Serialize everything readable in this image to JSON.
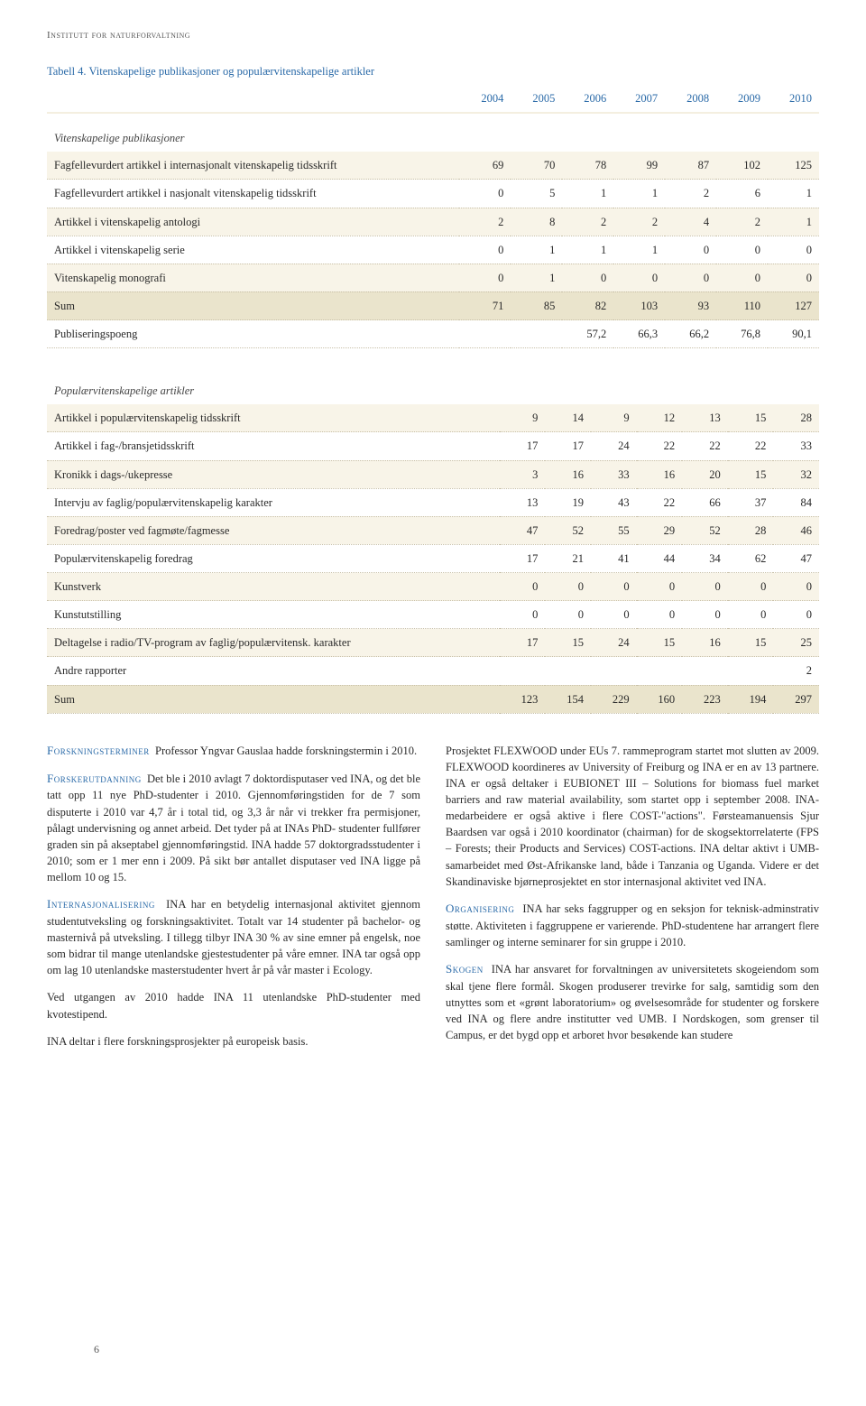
{
  "header": "Institutt for naturforvaltning",
  "caption": {
    "label": "Tabell 4.",
    "text": "Vitenskapelige publikasjoner og populærvitenskapelige artikler"
  },
  "table1": {
    "years": [
      "2004",
      "2005",
      "2006",
      "2007",
      "2008",
      "2009",
      "2010"
    ],
    "section_head": "Vitenskapelige publikasjoner",
    "rows": [
      {
        "label": "Fagfellevurdert artikkel i internasjonalt vitenskapelig tidsskrift",
        "v": [
          "69",
          "70",
          "78",
          "99",
          "87",
          "102",
          "125"
        ]
      },
      {
        "label": "Fagfellevurdert artikkel i nasjonalt vitenskapelig tidsskrift",
        "v": [
          "0",
          "5",
          "1",
          "1",
          "2",
          "6",
          "1"
        ]
      },
      {
        "label": "Artikkel i vitenskapelig antologi",
        "v": [
          "2",
          "8",
          "2",
          "2",
          "4",
          "2",
          "1"
        ]
      },
      {
        "label": "Artikkel i vitenskapelig serie",
        "v": [
          "0",
          "1",
          "1",
          "1",
          "0",
          "0",
          "0"
        ]
      },
      {
        "label": "Vitenskapelig monografi",
        "v": [
          "0",
          "1",
          "0",
          "0",
          "0",
          "0",
          "0"
        ]
      }
    ],
    "sum": {
      "label": "Sum",
      "v": [
        "71",
        "85",
        "82",
        "103",
        "93",
        "110",
        "127"
      ]
    },
    "pub": {
      "label": "Publiseringspoeng",
      "v": [
        "",
        "",
        "57,2",
        "66,3",
        "66,2",
        "76,8",
        "90,1"
      ]
    }
  },
  "table2": {
    "section_head": "Populærvitenskapelige artikler",
    "rows": [
      {
        "label": "Artikkel i populærvitenskapelig tidsskrift",
        "v": [
          "9",
          "14",
          "9",
          "12",
          "13",
          "15",
          "28"
        ]
      },
      {
        "label": "Artikkel i fag-/bransjetidsskrift",
        "v": [
          "17",
          "17",
          "24",
          "22",
          "22",
          "22",
          "33"
        ]
      },
      {
        "label": "Kronikk i dags-/ukepresse",
        "v": [
          "3",
          "16",
          "33",
          "16",
          "20",
          "15",
          "32"
        ]
      },
      {
        "label": "Intervju av faglig/populærvitenskapelig karakter",
        "v": [
          "13",
          "19",
          "43",
          "22",
          "66",
          "37",
          "84"
        ]
      },
      {
        "label": "Foredrag/poster ved fagmøte/fagmesse",
        "v": [
          "47",
          "52",
          "55",
          "29",
          "52",
          "28",
          "46"
        ]
      },
      {
        "label": "Populærvitenskapelig foredrag",
        "v": [
          "17",
          "21",
          "41",
          "44",
          "34",
          "62",
          "47"
        ]
      },
      {
        "label": "Kunstverk",
        "v": [
          "0",
          "0",
          "0",
          "0",
          "0",
          "0",
          "0"
        ]
      },
      {
        "label": "Kunstutstilling",
        "v": [
          "0",
          "0",
          "0",
          "0",
          "0",
          "0",
          "0"
        ]
      },
      {
        "label": "Deltagelse i radio/TV-program av faglig/populærvitensk. karakter",
        "v": [
          "17",
          "15",
          "24",
          "15",
          "16",
          "15",
          "25"
        ]
      },
      {
        "label": "Andre rapporter",
        "v": [
          "",
          "",
          "",
          "",
          "",
          "",
          "2"
        ]
      }
    ],
    "sum": {
      "label": "Sum",
      "v": [
        "123",
        "154",
        "229",
        "160",
        "223",
        "194",
        "297"
      ]
    }
  },
  "body": {
    "p1_head": "Forskningsterminer",
    "p1": "Professor Yngvar Gauslaa hadde forskningstermin i 2010.",
    "p2_head": "Forskerutdanning",
    "p2": "Det ble i 2010 avlagt 7 doktordisputaser ved INA, og det ble tatt opp 11 nye PhD-studenter i 2010. Gjennomføringstiden for de 7 som disputerte i 2010 var 4,7 år i total tid, og 3,3 år når vi trekker fra permisjoner, pålagt undervisning og annet arbeid. Det tyder på at INAs PhD- studenter fullfører graden sin på akseptabel gjennomføringstid. INA hadde 57 doktorgradsstudenter i 2010; som er 1 mer enn i 2009. På sikt bør antallet disputaser ved INA ligge på mellom 10 og 15.",
    "p3_head": "Internasjonalisering",
    "p3": "INA har en betydelig internasjonal aktivitet gjennom studentutveksling og forskningsaktivitet. Totalt var 14 studenter på bachelor- og masternivå på utveksling. I tillegg tilbyr INA 30 % av sine emner på engelsk, noe som bidrar til mange utenlandske gjestestudenter på våre emner. INA tar også opp om lag 10 utenlandske masterstudenter hvert år på vår master i Ecology.",
    "p4": "Ved utgangen av 2010 hadde INA 11 utenlandske PhD-studenter med kvotestipend.",
    "p5": "INA deltar i flere forskningsprosjekter på europeisk basis.",
    "p6": "Prosjektet FLEXWOOD under EUs 7. rammeprogram startet mot slutten av 2009. FLEXWOOD koordineres av University of Freiburg og INA er en av 13 partnere. INA er også deltaker i EUBIONET III – Solutions for biomass fuel market barriers and raw material availability, som startet opp i september 2008. INA-medarbeidere er også aktive i flere COST-\"actions\". Førsteamanuensis Sjur Baardsen var også i 2010 koordinator (chairman) for de skogsektorrelaterte (FPS – Forests; their Products and Services) COST-actions. INA deltar aktivt i UMB-samarbeidet med Øst-Afrikanske land, både i Tanzania og Uganda. Videre er det Skandinaviske bjørneprosjektet en stor internasjonal aktivitet ved INA.",
    "p7_head": "Organisering",
    "p7": "INA har seks faggrupper og en seksjon for teknisk-adminstrativ støtte. Aktiviteten i faggruppene er varierende. PhD-studentene har arrangert flere samlinger og interne seminarer for sin gruppe i 2010.",
    "p8_head": "Skogen",
    "p8": "INA har ansvaret for forvaltningen av universitetets skogeiendom som skal tjene flere formål. Skogen produserer trevirke for salg, samtidig som den utnyttes som et «grønt laboratorium» og øvelsesområde for studenter og forskere ved INA og flere andre institutter ved UMB. I Nordskogen, som grenser til Campus, er det bygd opp et arboret hvor besøkende kan studere"
  },
  "page_number": "6",
  "style": {
    "accent": "#2a6aa8",
    "stripe_light": "#f8f4e8",
    "stripe_sum": "#eae4cc",
    "dotted": "#c8c0a8"
  }
}
